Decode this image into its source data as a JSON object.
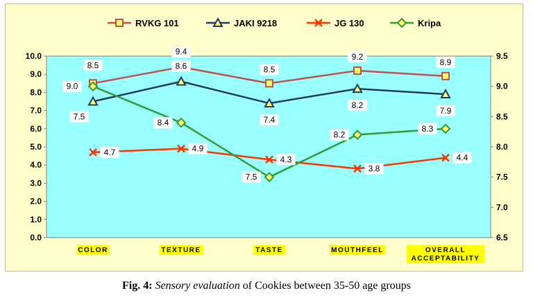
{
  "chart_data": {
    "type": "line",
    "categories": [
      "COLOR",
      "TEXTURE",
      "TASTE",
      "MOUTHFEEL",
      "OVERALL ACCEPTABILITY"
    ],
    "category_lines": [
      [
        "COLOR"
      ],
      [
        "TEXTURE"
      ],
      [
        "TASTE"
      ],
      [
        "MOUTHFEEL"
      ],
      [
        "OVERALL",
        "ACCEPTABILITY"
      ]
    ],
    "y_left": {
      "lim": [
        0,
        10
      ],
      "ticks": [
        "0.0",
        "1.0",
        "2.0",
        "3.0",
        "4.0",
        "5.0",
        "6.0",
        "7.0",
        "8.0",
        "9.0",
        "10.0"
      ]
    },
    "y_right": {
      "lim": [
        6.5,
        9.5
      ],
      "ticks": [
        "6.5",
        "7.0",
        "7.5",
        "8.0",
        "8.5",
        "9.0",
        "9.5"
      ]
    },
    "grid": false,
    "legend_position": "top",
    "series": [
      {
        "name": "RVKG 101",
        "axis": "left",
        "color": "#c0504d",
        "marker": "square",
        "values": [
          8.5,
          9.4,
          8.5,
          9.2,
          8.9
        ],
        "labels": [
          "8.5",
          "9.4",
          "8.5",
          "9.2",
          "8.9"
        ]
      },
      {
        "name": "JAKI 9218",
        "axis": "left",
        "color": "#1f3864",
        "marker": "triangle",
        "values": [
          7.5,
          8.6,
          7.4,
          8.2,
          7.9
        ],
        "labels": [
          "7.5",
          "8.6",
          "7.4",
          "8.2",
          "7.9"
        ]
      },
      {
        "name": "JG 130",
        "axis": "left",
        "color": "#ff3300",
        "marker": "x",
        "values": [
          4.7,
          4.9,
          4.3,
          3.8,
          4.4
        ],
        "labels": [
          "4.7",
          "4.9",
          "4.3",
          "3.8",
          "4.4"
        ]
      },
      {
        "name": "Kripa",
        "axis": "right",
        "color": "#339933",
        "marker": "diamond",
        "values": [
          9.0,
          8.4,
          7.5,
          8.2,
          8.3
        ],
        "labels": [
          "9.0",
          "8.4",
          "7.5",
          "8.2",
          "8.3"
        ]
      }
    ],
    "colors": {
      "plot_background": "#99ffff",
      "outer_background": "#ffffcc",
      "category_highlight": "#ffff00"
    }
  },
  "caption": {
    "fig_label": "Fig. 4:",
    "italic_part": "Sensory evaluation",
    "rest": "of Cookies between 35-50 age groups"
  }
}
